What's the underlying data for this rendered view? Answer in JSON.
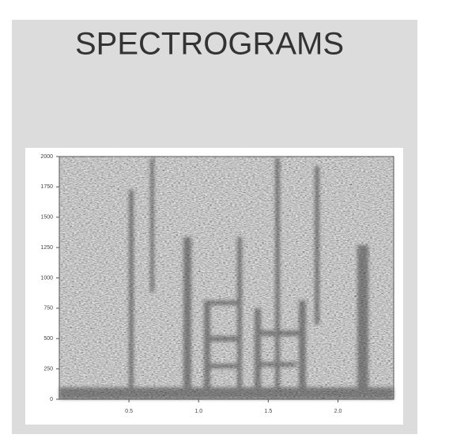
{
  "chart_data": {
    "type": "spectrogram",
    "title": "SPECTROGRAMS",
    "xlim": [
      0,
      2.4
    ],
    "xticks": [
      0.5,
      {
        "value": 1,
        "label": "1.0"
      },
      1.5,
      {
        "value": 2,
        "label": "2.0"
      }
    ],
    "ylim": [
      0,
      2000
    ],
    "yticks": [
      0,
      250,
      500,
      750,
      1000,
      1250,
      1500,
      1750,
      2000
    ]
  }
}
